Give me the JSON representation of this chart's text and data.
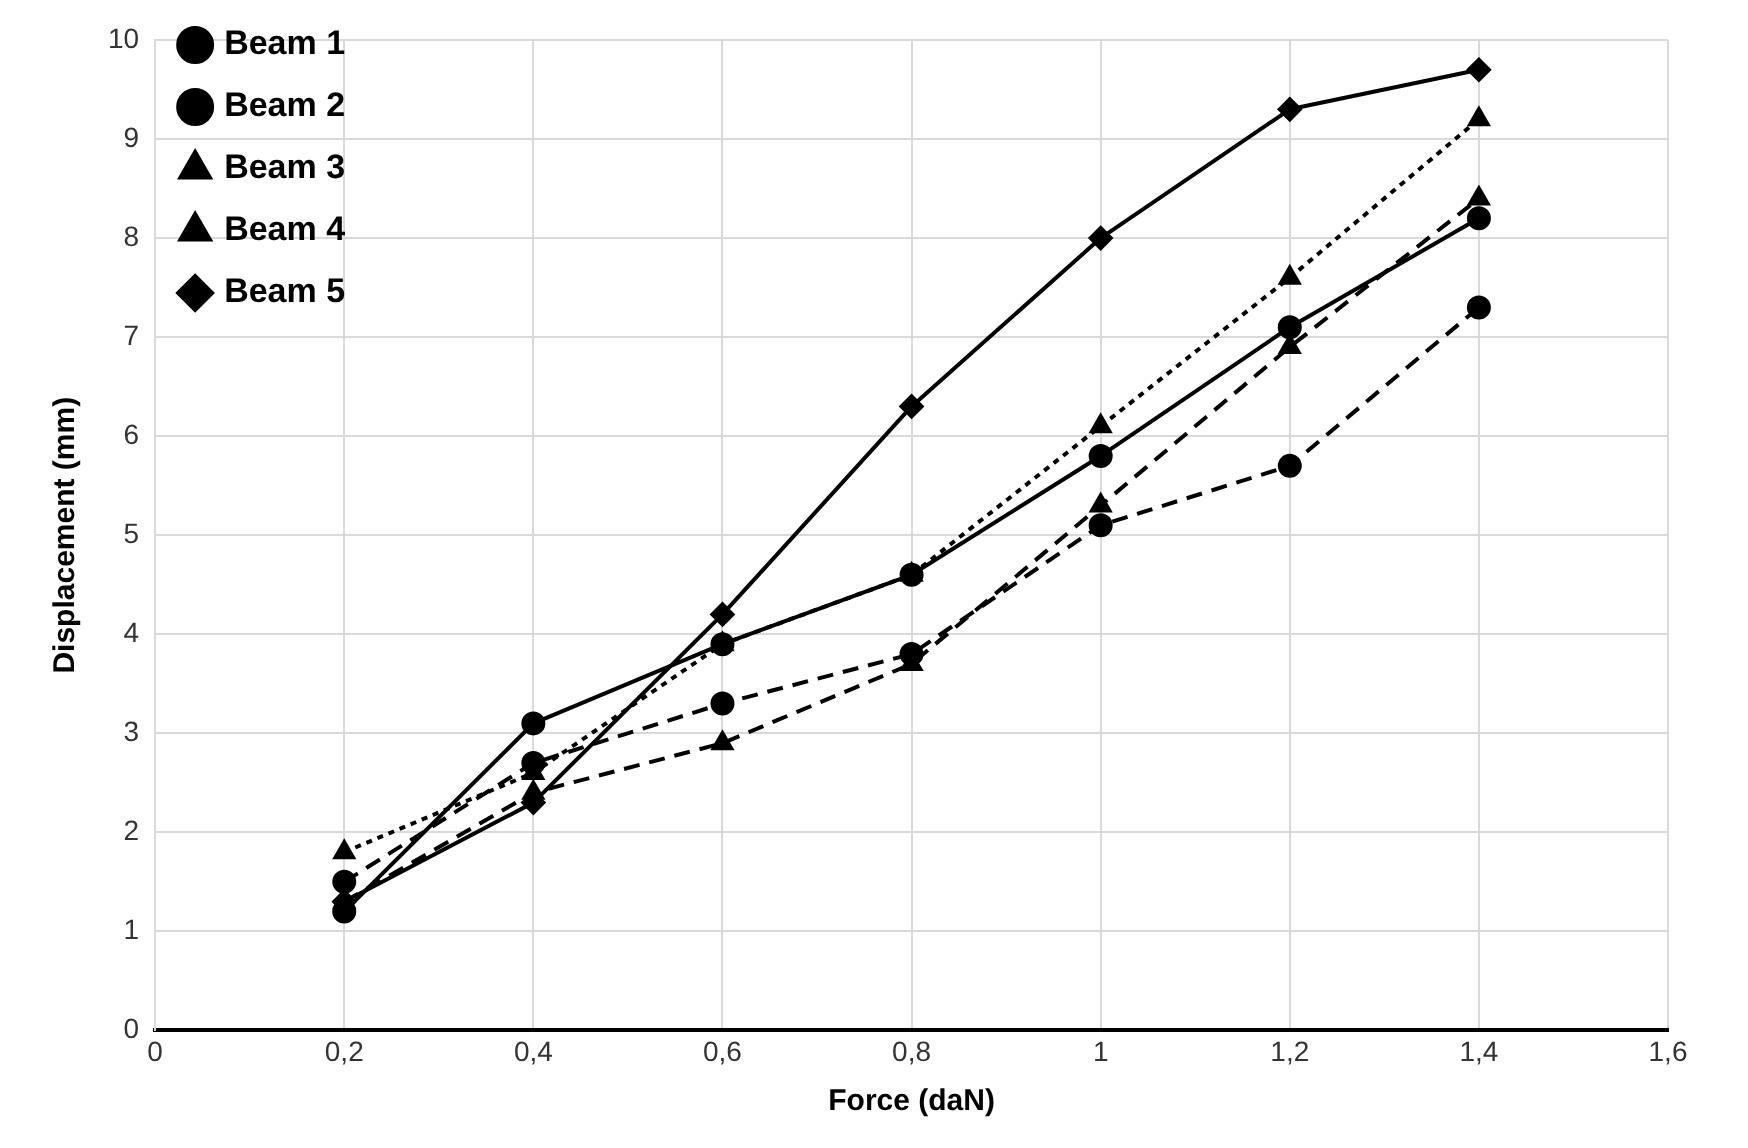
{
  "chart_data": {
    "type": "line",
    "xlabel": "Force (daN)",
    "ylabel": "Displacement (mm)",
    "x": [
      0.2,
      0.4,
      0.6,
      0.8,
      1,
      1.2,
      1.4
    ],
    "series": [
      {
        "name": "Beam 1",
        "color": "#000000",
        "marker": "circle",
        "line_style": "solid",
        "values": [
          1.2,
          3.1,
          3.9,
          4.6,
          5.8,
          7.1,
          8.2
        ]
      },
      {
        "name": "Beam 2",
        "color": "#000000",
        "marker": "circle",
        "line_style": "dashed",
        "values": [
          1.5,
          2.7,
          3.3,
          3.8,
          5.1,
          5.7,
          7.3
        ]
      },
      {
        "name": "Beam 3",
        "color": "#000000",
        "marker": "triangle",
        "line_style": "dashed",
        "values": [
          1.3,
          2.4,
          2.9,
          3.7,
          5.3,
          6.9,
          8.4
        ]
      },
      {
        "name": "Beam 4",
        "color": "#000000",
        "marker": "triangle",
        "line_style": "dotted",
        "values": [
          1.8,
          2.6,
          3.9,
          4.6,
          6.1,
          7.6,
          9.2
        ]
      },
      {
        "name": "Beam 5",
        "color": "#000000",
        "marker": "diamond",
        "line_style": "solid",
        "values": [
          1.3,
          2.3,
          4.2,
          6.3,
          8.0,
          9.3,
          9.7
        ]
      }
    ],
    "xlim": [
      0,
      1.6
    ],
    "xticks": [
      0,
      {
        "value": 0.2,
        "label": "0,2"
      },
      {
        "value": 0.4,
        "label": "0,4"
      },
      {
        "value": 0.6,
        "label": "0,6"
      },
      {
        "value": 0.8,
        "label": "0,8"
      },
      1,
      {
        "value": 1.2,
        "label": "1,2"
      },
      {
        "value": 1.4,
        "label": "1,4"
      },
      {
        "value": 1.6,
        "label": "1,6"
      }
    ],
    "ylim": [
      0,
      10
    ],
    "yticks": [
      0,
      1,
      2,
      3,
      4,
      5,
      6,
      7,
      8,
      9,
      10
    ],
    "grid": true,
    "legend": "top left"
  }
}
